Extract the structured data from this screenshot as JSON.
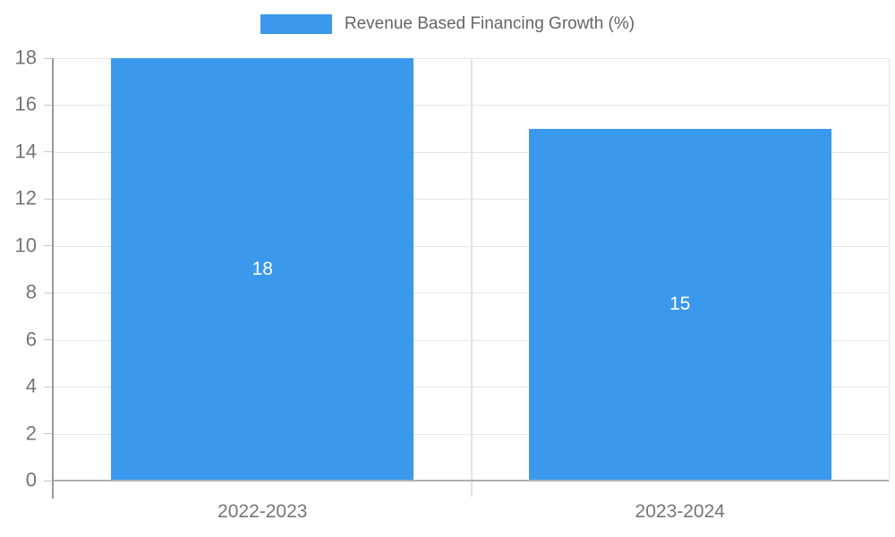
{
  "chart_data": {
    "type": "bar",
    "title": "",
    "legend": "Revenue Based Financing Growth (%)",
    "legend_position": "top-center",
    "categories": [
      "2022-2023",
      "2023-2024"
    ],
    "values": [
      18,
      15
    ],
    "value_labels": [
      "18",
      "15"
    ],
    "xlabel": "",
    "ylabel": "",
    "ylim": [
      0,
      18
    ],
    "yticks": [
      0,
      2,
      4,
      6,
      8,
      10,
      12,
      14,
      16,
      18
    ],
    "grid": "horizontal",
    "colors": {
      "bar": "#3b99ed",
      "grid_line": "#e6e6e6",
      "axis_line": "#9a9a9a",
      "baseline": "#b0b0b0",
      "tick_text": "#757575",
      "legend_text": "#666666",
      "value_text": "#ffffff",
      "background": "#ffffff"
    }
  }
}
